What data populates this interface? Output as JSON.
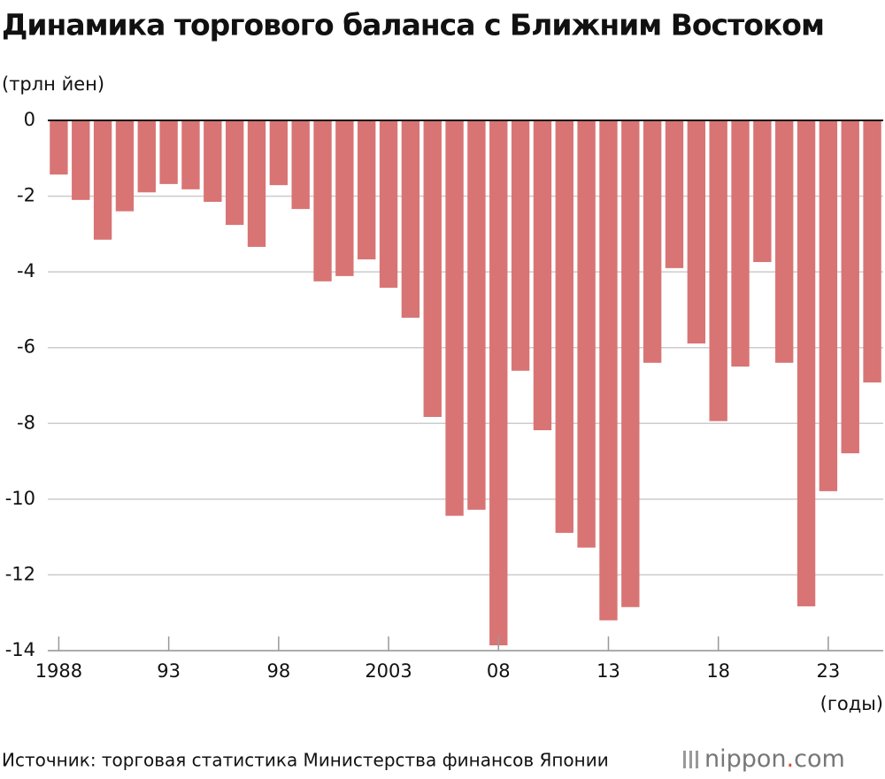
{
  "chart_data": {
    "type": "bar",
    "title": "Динамика торгового баланса с Ближним Востоком",
    "y_label": "(трлн йен)",
    "x_label": "(годы)",
    "source": "Источник: торговая статистика Министерства финансов Японии",
    "logo": {
      "name": "nippon",
      "dot": ".",
      "suffix": "com"
    },
    "categories": [
      "1988",
      null,
      null,
      null,
      null,
      "93",
      null,
      null,
      null,
      null,
      "98",
      null,
      null,
      null,
      null,
      "2003",
      null,
      null,
      null,
      null,
      "08",
      null,
      null,
      null,
      null,
      "13",
      null,
      null,
      null,
      null,
      "18",
      null,
      null,
      null,
      null,
      "23",
      null,
      null
    ],
    "values": [
      -1.43,
      -2.1,
      -3.15,
      -2.4,
      -1.9,
      -1.68,
      -1.82,
      -2.15,
      -2.76,
      -3.34,
      -1.71,
      -2.34,
      -4.25,
      -4.11,
      -3.67,
      -4.42,
      -5.21,
      -7.83,
      -10.44,
      -10.28,
      -13.86,
      -6.61,
      -8.18,
      -10.89,
      -11.28,
      -13.2,
      -12.85,
      -6.4,
      -3.9,
      -5.89,
      -7.94,
      -6.5,
      -3.74,
      -6.4,
      -12.83,
      -9.79,
      -8.79,
      -6.92
    ],
    "color": "#d97474",
    "ylim": [
      -14,
      0
    ],
    "yticks": [
      0,
      -2,
      -4,
      -6,
      -8,
      -10,
      -12,
      -14
    ],
    "grid": true
  }
}
